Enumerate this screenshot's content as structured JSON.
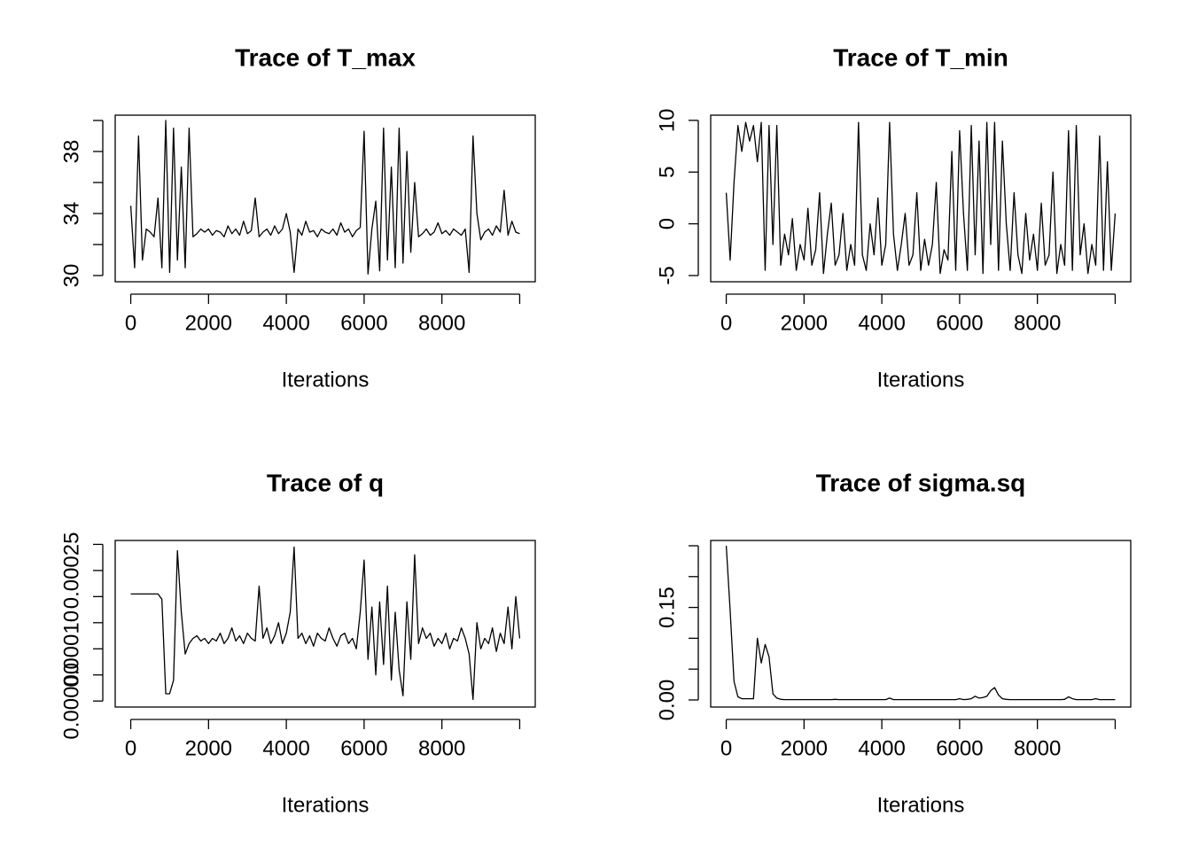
{
  "chart_data": [
    {
      "type": "line",
      "title": "Trace of T_max",
      "xlabel": "Iterations",
      "color": "#000000",
      "xlim": [
        -400,
        10400
      ],
      "xticks": [
        0,
        2000,
        4000,
        6000,
        8000,
        {
          "value": 10000,
          "label": null
        }
      ],
      "ylim": [
        29.6,
        40.34
      ],
      "yticks": [
        30,
        {
          "value": 32,
          "label": null
        },
        34,
        {
          "value": 36,
          "label": null
        },
        38,
        {
          "value": 40,
          "label": null
        }
      ],
      "x": [
        0,
        100,
        200,
        300,
        400,
        500,
        600,
        700,
        800,
        900,
        1000,
        1100,
        1200,
        1300,
        1400,
        1500,
        1600,
        1700,
        1800,
        1900,
        2000,
        2100,
        2200,
        2300,
        2400,
        2500,
        2600,
        2700,
        2800,
        2900,
        3000,
        3100,
        3200,
        3300,
        3400,
        3500,
        3600,
        3700,
        3800,
        3900,
        4000,
        4100,
        4200,
        4300,
        4400,
        4500,
        4600,
        4700,
        4800,
        4900,
        5000,
        5100,
        5200,
        5300,
        5400,
        5500,
        5600,
        5700,
        5800,
        5900,
        6000,
        6100,
        6200,
        6300,
        6400,
        6500,
        6600,
        6700,
        6800,
        6900,
        7000,
        7100,
        7200,
        7300,
        7400,
        7500,
        7600,
        7700,
        7800,
        7900,
        8000,
        8100,
        8200,
        8300,
        8400,
        8500,
        8600,
        8700,
        8800,
        8900,
        9000,
        9100,
        9200,
        9300,
        9400,
        9500,
        9600,
        9700,
        9800,
        9900,
        10000
      ],
      "values": [
        34.5,
        30.5,
        39,
        31,
        33,
        32.8,
        32.5,
        35,
        30.5,
        40,
        30.2,
        39.5,
        31,
        37,
        30.5,
        39.5,
        32.5,
        32.7,
        33,
        32.8,
        33,
        32.6,
        32.9,
        32.8,
        32.5,
        33.2,
        32.7,
        33,
        32.6,
        33.5,
        32.7,
        32.9,
        35,
        32.5,
        32.8,
        33,
        32.6,
        33.2,
        32.7,
        33,
        34,
        32.8,
        30.2,
        33,
        32.6,
        33.5,
        32.8,
        32.9,
        32.5,
        33,
        32.8,
        32.7,
        33,
        32.6,
        33.4,
        32.8,
        33,
        32.5,
        32.9,
        33.1,
        39.3,
        30.1,
        33,
        34.8,
        30.3,
        39.5,
        31,
        37,
        30.5,
        39.5,
        30.8,
        38,
        31.5,
        36,
        32.5,
        32.7,
        33,
        32.6,
        32.8,
        33.4,
        32.7,
        32.9,
        32.6,
        33,
        32.8,
        32.6,
        33,
        30.2,
        39,
        34,
        32.3,
        32.8,
        33,
        32.6,
        33.2,
        32.8,
        35.5,
        32.6,
        33.5,
        32.8,
        32.7
      ]
    },
    {
      "type": "line",
      "title": "Trace of T_min",
      "xlabel": "Iterations",
      "color": "#000000",
      "xlim": [
        -400,
        10400
      ],
      "xticks": [
        0,
        2000,
        4000,
        6000,
        8000,
        {
          "value": 10000,
          "label": null
        }
      ],
      "ylim": [
        -5.6,
        10.5
      ],
      "yticks": [
        -5,
        0,
        5,
        10
      ],
      "x": [
        0,
        100,
        200,
        300,
        400,
        500,
        600,
        700,
        800,
        900,
        1000,
        1100,
        1200,
        1300,
        1400,
        1500,
        1600,
        1700,
        1800,
        1900,
        2000,
        2100,
        2200,
        2300,
        2400,
        2500,
        2600,
        2700,
        2800,
        2900,
        3000,
        3100,
        3200,
        3300,
        3400,
        3500,
        3600,
        3700,
        3800,
        3900,
        4000,
        4100,
        4200,
        4300,
        4400,
        4500,
        4600,
        4700,
        4800,
        4900,
        5000,
        5100,
        5200,
        5300,
        5400,
        5500,
        5600,
        5700,
        5800,
        5900,
        6000,
        6100,
        6200,
        6300,
        6400,
        6500,
        6600,
        6700,
        6800,
        6900,
        7000,
        7100,
        7200,
        7300,
        7400,
        7500,
        7600,
        7700,
        7800,
        7900,
        8000,
        8100,
        8200,
        8300,
        8400,
        8500,
        8600,
        8700,
        8800,
        8900,
        9000,
        9100,
        9200,
        9300,
        9400,
        9500,
        9600,
        9700,
        9800,
        9900,
        10000
      ],
      "values": [
        3,
        -3.5,
        4,
        9.5,
        7,
        9.8,
        8,
        9.5,
        6,
        9.8,
        -4.5,
        9.5,
        -2,
        9.5,
        -4,
        -1,
        -3,
        0.5,
        -4.5,
        -2,
        -3.5,
        1.5,
        -4,
        -2.5,
        3,
        -4.8,
        -1,
        2,
        -4,
        -3,
        1,
        -4.5,
        -2,
        -4,
        9.8,
        -3,
        -4.5,
        0,
        -3,
        2.5,
        -4,
        -2,
        9.8,
        -1,
        -4.5,
        -2,
        1,
        -4,
        -3,
        3,
        -4.5,
        -1.5,
        -4,
        -2,
        4,
        -4.8,
        -2.5,
        -3.5,
        7,
        -4.5,
        9,
        1,
        -4.5,
        9.5,
        -3,
        8,
        -4.8,
        9.8,
        -2,
        9.8,
        -4.5,
        8,
        0,
        -4.5,
        3,
        -3,
        -4.8,
        1,
        -3.5,
        -1,
        -4.5,
        2,
        -4,
        -3,
        5,
        -4.8,
        -2,
        -4,
        9,
        -4.5,
        9.5,
        -3,
        0,
        -4.8,
        -2,
        -4,
        8.5,
        -4.5,
        6,
        -4.5,
        1
      ]
    },
    {
      "type": "line",
      "title": "Trace of q",
      "xlabel": "Iterations",
      "color": "#000000",
      "xlim": [
        -400,
        10400
      ],
      "xticks": [
        0,
        2000,
        4000,
        6000,
        8000,
        {
          "value": 10000,
          "label": null
        }
      ],
      "ylim": [
        -1.15e-05,
        0.0003075
      ],
      "yticks": [
        {
          "value": 0,
          "label": "0.00000"
        },
        {
          "value": 5e-05,
          "label": null
        },
        {
          "value": 0.0001,
          "label": "0.00010"
        },
        {
          "value": 0.00015,
          "label": null
        },
        {
          "value": 0.0002,
          "label": null
        },
        {
          "value": 0.00025,
          "label": "0.00025"
        },
        {
          "value": 0.0003,
          "label": null
        }
      ],
      "x": [
        0,
        100,
        200,
        300,
        400,
        500,
        600,
        700,
        800,
        900,
        1000,
        1100,
        1200,
        1300,
        1400,
        1500,
        1600,
        1700,
        1800,
        1900,
        2000,
        2100,
        2200,
        2300,
        2400,
        2500,
        2600,
        2700,
        2800,
        2900,
        3000,
        3100,
        3200,
        3300,
        3400,
        3500,
        3600,
        3700,
        3800,
        3900,
        4000,
        4100,
        4200,
        4300,
        4400,
        4500,
        4600,
        4700,
        4800,
        4900,
        5000,
        5100,
        5200,
        5300,
        5400,
        5500,
        5600,
        5700,
        5800,
        5900,
        6000,
        6100,
        6200,
        6300,
        6400,
        6500,
        6600,
        6700,
        6800,
        6900,
        7000,
        7100,
        7200,
        7300,
        7400,
        7500,
        7600,
        7700,
        7800,
        7900,
        8000,
        8100,
        8200,
        8300,
        8400,
        8500,
        8600,
        8700,
        8800,
        8900,
        9000,
        9100,
        9200,
        9300,
        9400,
        9500,
        9600,
        9700,
        9800,
        9900,
        10000
      ],
      "values": [
        0.000205,
        0.000205,
        0.000205,
        0.000205,
        0.000205,
        0.000205,
        0.000205,
        0.000205,
        0.000195,
        1.4e-05,
        1.4e-05,
        4e-05,
        0.000288,
        0.00017,
        9e-05,
        0.00011,
        0.00012,
        0.000125,
        0.000115,
        0.00012,
        0.00011,
        0.00012,
        0.000115,
        0.00013,
        0.00011,
        0.00012,
        0.00014,
        0.000115,
        0.000125,
        0.00011,
        0.00013,
        0.00012,
        0.000115,
        0.00022,
        0.00012,
        0.00014,
        0.00011,
        0.000125,
        0.00015,
        0.00011,
        0.00013,
        0.00017,
        0.000295,
        0.00012,
        0.00013,
        0.00011,
        0.000125,
        0.000105,
        0.00013,
        0.00012,
        0.000115,
        0.00014,
        0.00012,
        0.000105,
        0.000125,
        0.00013,
        0.00011,
        0.00012,
        0.0001,
        0.00017,
        0.00027,
        8e-05,
        0.00018,
        5e-05,
        0.00019,
        7e-05,
        0.00022,
        4e-05,
        0.00017,
        6e-05,
        1e-05,
        0.00019,
        8e-05,
        0.00028,
        0.00011,
        0.00014,
        0.00012,
        0.00013,
        0.000105,
        0.00012,
        0.00011,
        0.00013,
        0.0001,
        0.00012,
        0.000115,
        0.00014,
        0.00012,
        9e-05,
        3e-06,
        0.00015,
        0.0001,
        0.00012,
        0.00011,
        0.00014,
        9.5e-05,
        0.00013,
        0.00011,
        0.00018,
        0.0001,
        0.0002,
        0.00012
      ]
    },
    {
      "type": "line",
      "title": "Trace of sigma.sq",
      "xlabel": "Iterations",
      "color": "#000000",
      "xlim": [
        -400,
        10400
      ],
      "xticks": [
        0,
        2000,
        4000,
        6000,
        8000,
        {
          "value": 10000,
          "label": null
        }
      ],
      "ylim": [
        -0.0115,
        0.2586
      ],
      "yticks": [
        {
          "value": 0,
          "label": "0.00"
        },
        {
          "value": 0.05,
          "label": null
        },
        {
          "value": 0.1,
          "label": null
        },
        {
          "value": 0.15,
          "label": "0.15"
        },
        {
          "value": 0.2,
          "label": null
        },
        {
          "value": 0.25,
          "label": null
        }
      ],
      "x": [
        0,
        100,
        200,
        300,
        400,
        500,
        600,
        700,
        800,
        900,
        1000,
        1100,
        1200,
        1300,
        1400,
        1500,
        1600,
        1700,
        1800,
        1900,
        2000,
        2100,
        2200,
        2300,
        2400,
        2500,
        2600,
        2700,
        2800,
        2900,
        3000,
        3100,
        3200,
        3300,
        3400,
        3500,
        3600,
        3700,
        3800,
        3900,
        4000,
        4100,
        4200,
        4300,
        4400,
        4500,
        4600,
        4700,
        4800,
        4900,
        5000,
        5100,
        5200,
        5300,
        5400,
        5500,
        5600,
        5700,
        5800,
        5900,
        6000,
        6100,
        6200,
        6300,
        6400,
        6500,
        6600,
        6700,
        6800,
        6900,
        7000,
        7100,
        7200,
        7300,
        7400,
        7500,
        7600,
        7700,
        7800,
        7900,
        8000,
        8100,
        8200,
        8300,
        8400,
        8500,
        8600,
        8700,
        8800,
        8900,
        9000,
        9100,
        9200,
        9300,
        9400,
        9500,
        9600,
        9700,
        9800,
        9900,
        10000
      ],
      "values": [
        0.25,
        0.145,
        0.03,
        0.005,
        0.002,
        0.002,
        0.002,
        0.002,
        0.1,
        0.06,
        0.09,
        0.07,
        0.01,
        0.003,
        0.001,
        0.0005,
        0.0005,
        0.0005,
        0.0005,
        0.0005,
        0.0005,
        0.0005,
        0.0005,
        0.0005,
        0.0005,
        0.0005,
        0.0005,
        0.0005,
        0.001,
        0.0005,
        0.0005,
        0.0005,
        0.0005,
        0.0005,
        0.0005,
        0.0005,
        0.0005,
        0.0005,
        0.0005,
        0.0005,
        0.0005,
        0.0005,
        0.003,
        0.0005,
        0.0005,
        0.0005,
        0.0005,
        0.0005,
        0.0005,
        0.0005,
        0.0005,
        0.0005,
        0.0005,
        0.0005,
        0.0005,
        0.0005,
        0.0005,
        0.0005,
        0.0005,
        0.0005,
        0.002,
        0.0005,
        0.001,
        0.002,
        0.006,
        0.003,
        0.004,
        0.006,
        0.015,
        0.02,
        0.008,
        0.002,
        0.001,
        0.0005,
        0.0005,
        0.0005,
        0.0005,
        0.0005,
        0.0005,
        0.0005,
        0.0005,
        0.0005,
        0.0005,
        0.0005,
        0.0005,
        0.0005,
        0.0005,
        0.001,
        0.005,
        0.002,
        0.0005,
        0.0005,
        0.0005,
        0.0005,
        0.0005,
        0.002,
        0.0005,
        0.0005,
        0.0005,
        0.0005,
        0.0005
      ]
    }
  ]
}
